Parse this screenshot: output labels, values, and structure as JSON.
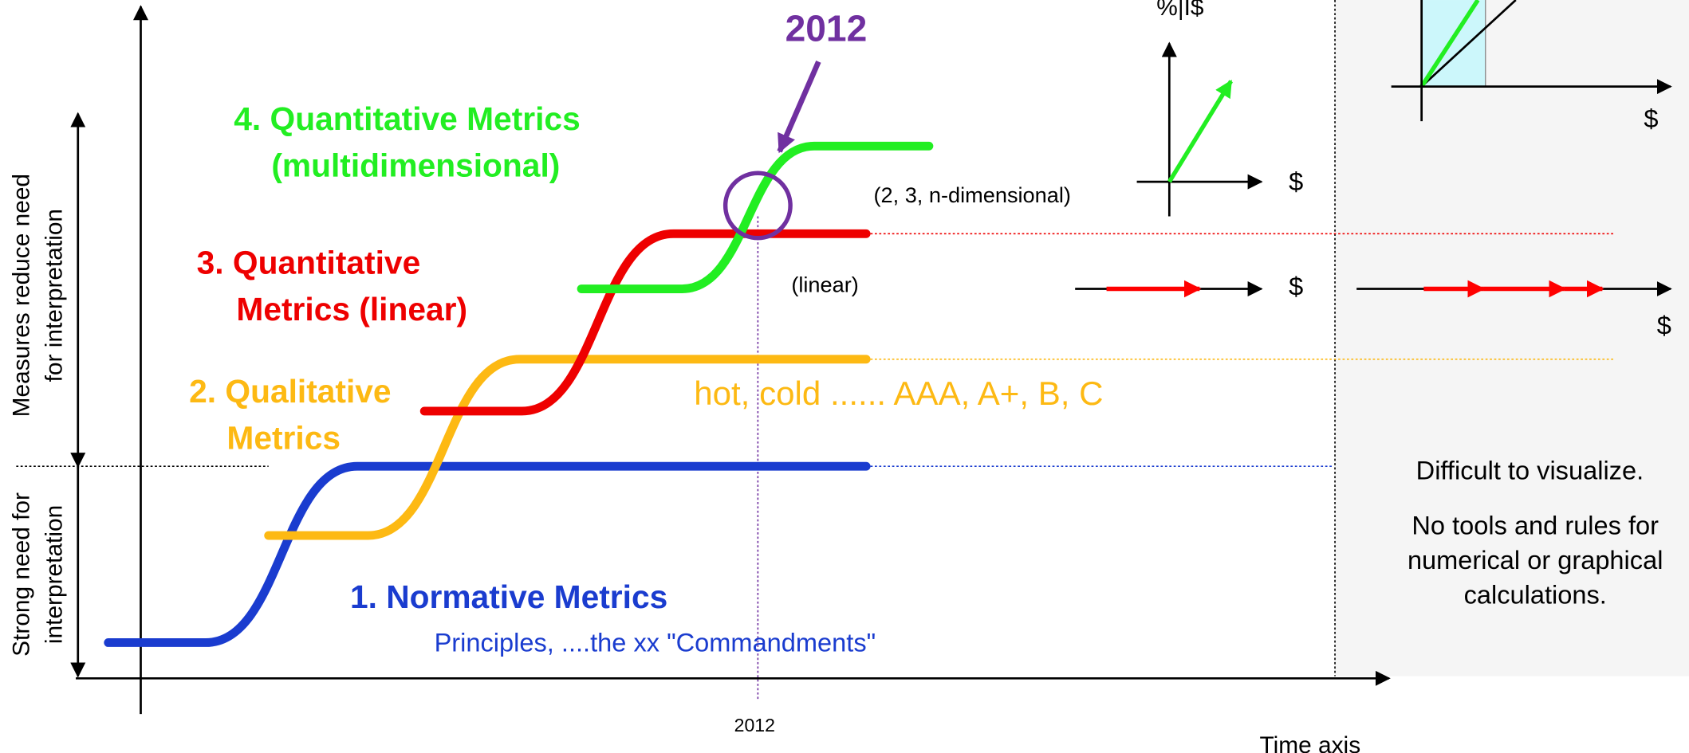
{
  "title_year": "2012",
  "levels": [
    {
      "lines": [
        "1. Normative Metrics"
      ],
      "note": "Principles, ....the xx \"Commandments\""
    },
    {
      "lines": [
        "2. Qualitative",
        "Metrics"
      ],
      "note": "hot, cold ...... AAA, A+, B, C"
    },
    {
      "lines": [
        "3. Quantitative",
        "Metrics (linear)"
      ],
      "note": "(linear)"
    },
    {
      "lines": [
        "4. Quantitative Metrics",
        "(multidimensional)"
      ],
      "note": "(2, 3, n-dimensional)"
    }
  ],
  "y_axis": {
    "upper": [
      "Measures reduce need",
      "for interpretation"
    ],
    "lower": [
      "Strong need for",
      "interpretation"
    ]
  },
  "x_axis": {
    "label": "Time axis",
    "tick": "2012"
  },
  "mini": {
    "money": "$",
    "percent": "%|I$"
  },
  "right_panel": {
    "lines": [
      "Difficult to visualize.",
      "No tools and rules for",
      "numerical or graphical",
      "calculations."
    ]
  }
}
